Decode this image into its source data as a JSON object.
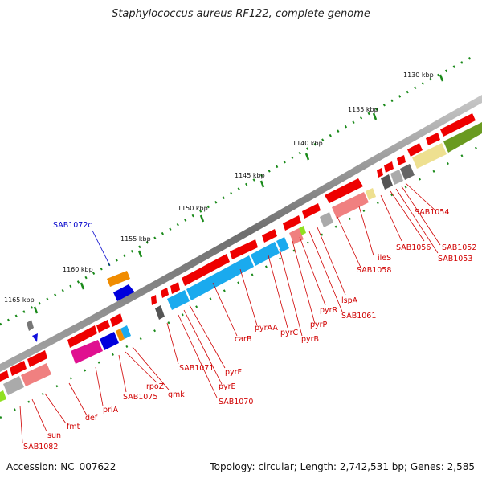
{
  "title": "Staphylococcus aureus RF122, complete genome",
  "footer": {
    "accession": "Accession: NC_007622",
    "summary": "Topology: circular; Length: 2,742,531 bp; Genes: 2,585"
  },
  "colors": {
    "gene_label": "#d00000",
    "reverse_label": "#0000cc",
    "backbone": "#808080",
    "tick": "#1a8a1a"
  },
  "kbp_labels": [
    "1130 kbp",
    "1135 kbp",
    "1140 kbp",
    "1145 kbp",
    "1150 kbp",
    "1155 kbp",
    "1160 kbp",
    "1165 kbp"
  ],
  "gene_labels": [
    "SAB1054",
    "SAB1052",
    "SAB1053",
    "SAB1056",
    "ileS",
    "SAB1058",
    "lspA",
    "SAB1061",
    "pyrR",
    "pyrP",
    "pyrB",
    "pyrC",
    "pyrAA",
    "carB",
    "pyrF",
    "pyrE",
    "SAB1070",
    "SAB1071",
    "gmk",
    "rpoZ",
    "SAB1075",
    "priA",
    "def",
    "fmt",
    "sun",
    "SAB1082",
    "SAB1072c"
  ]
}
